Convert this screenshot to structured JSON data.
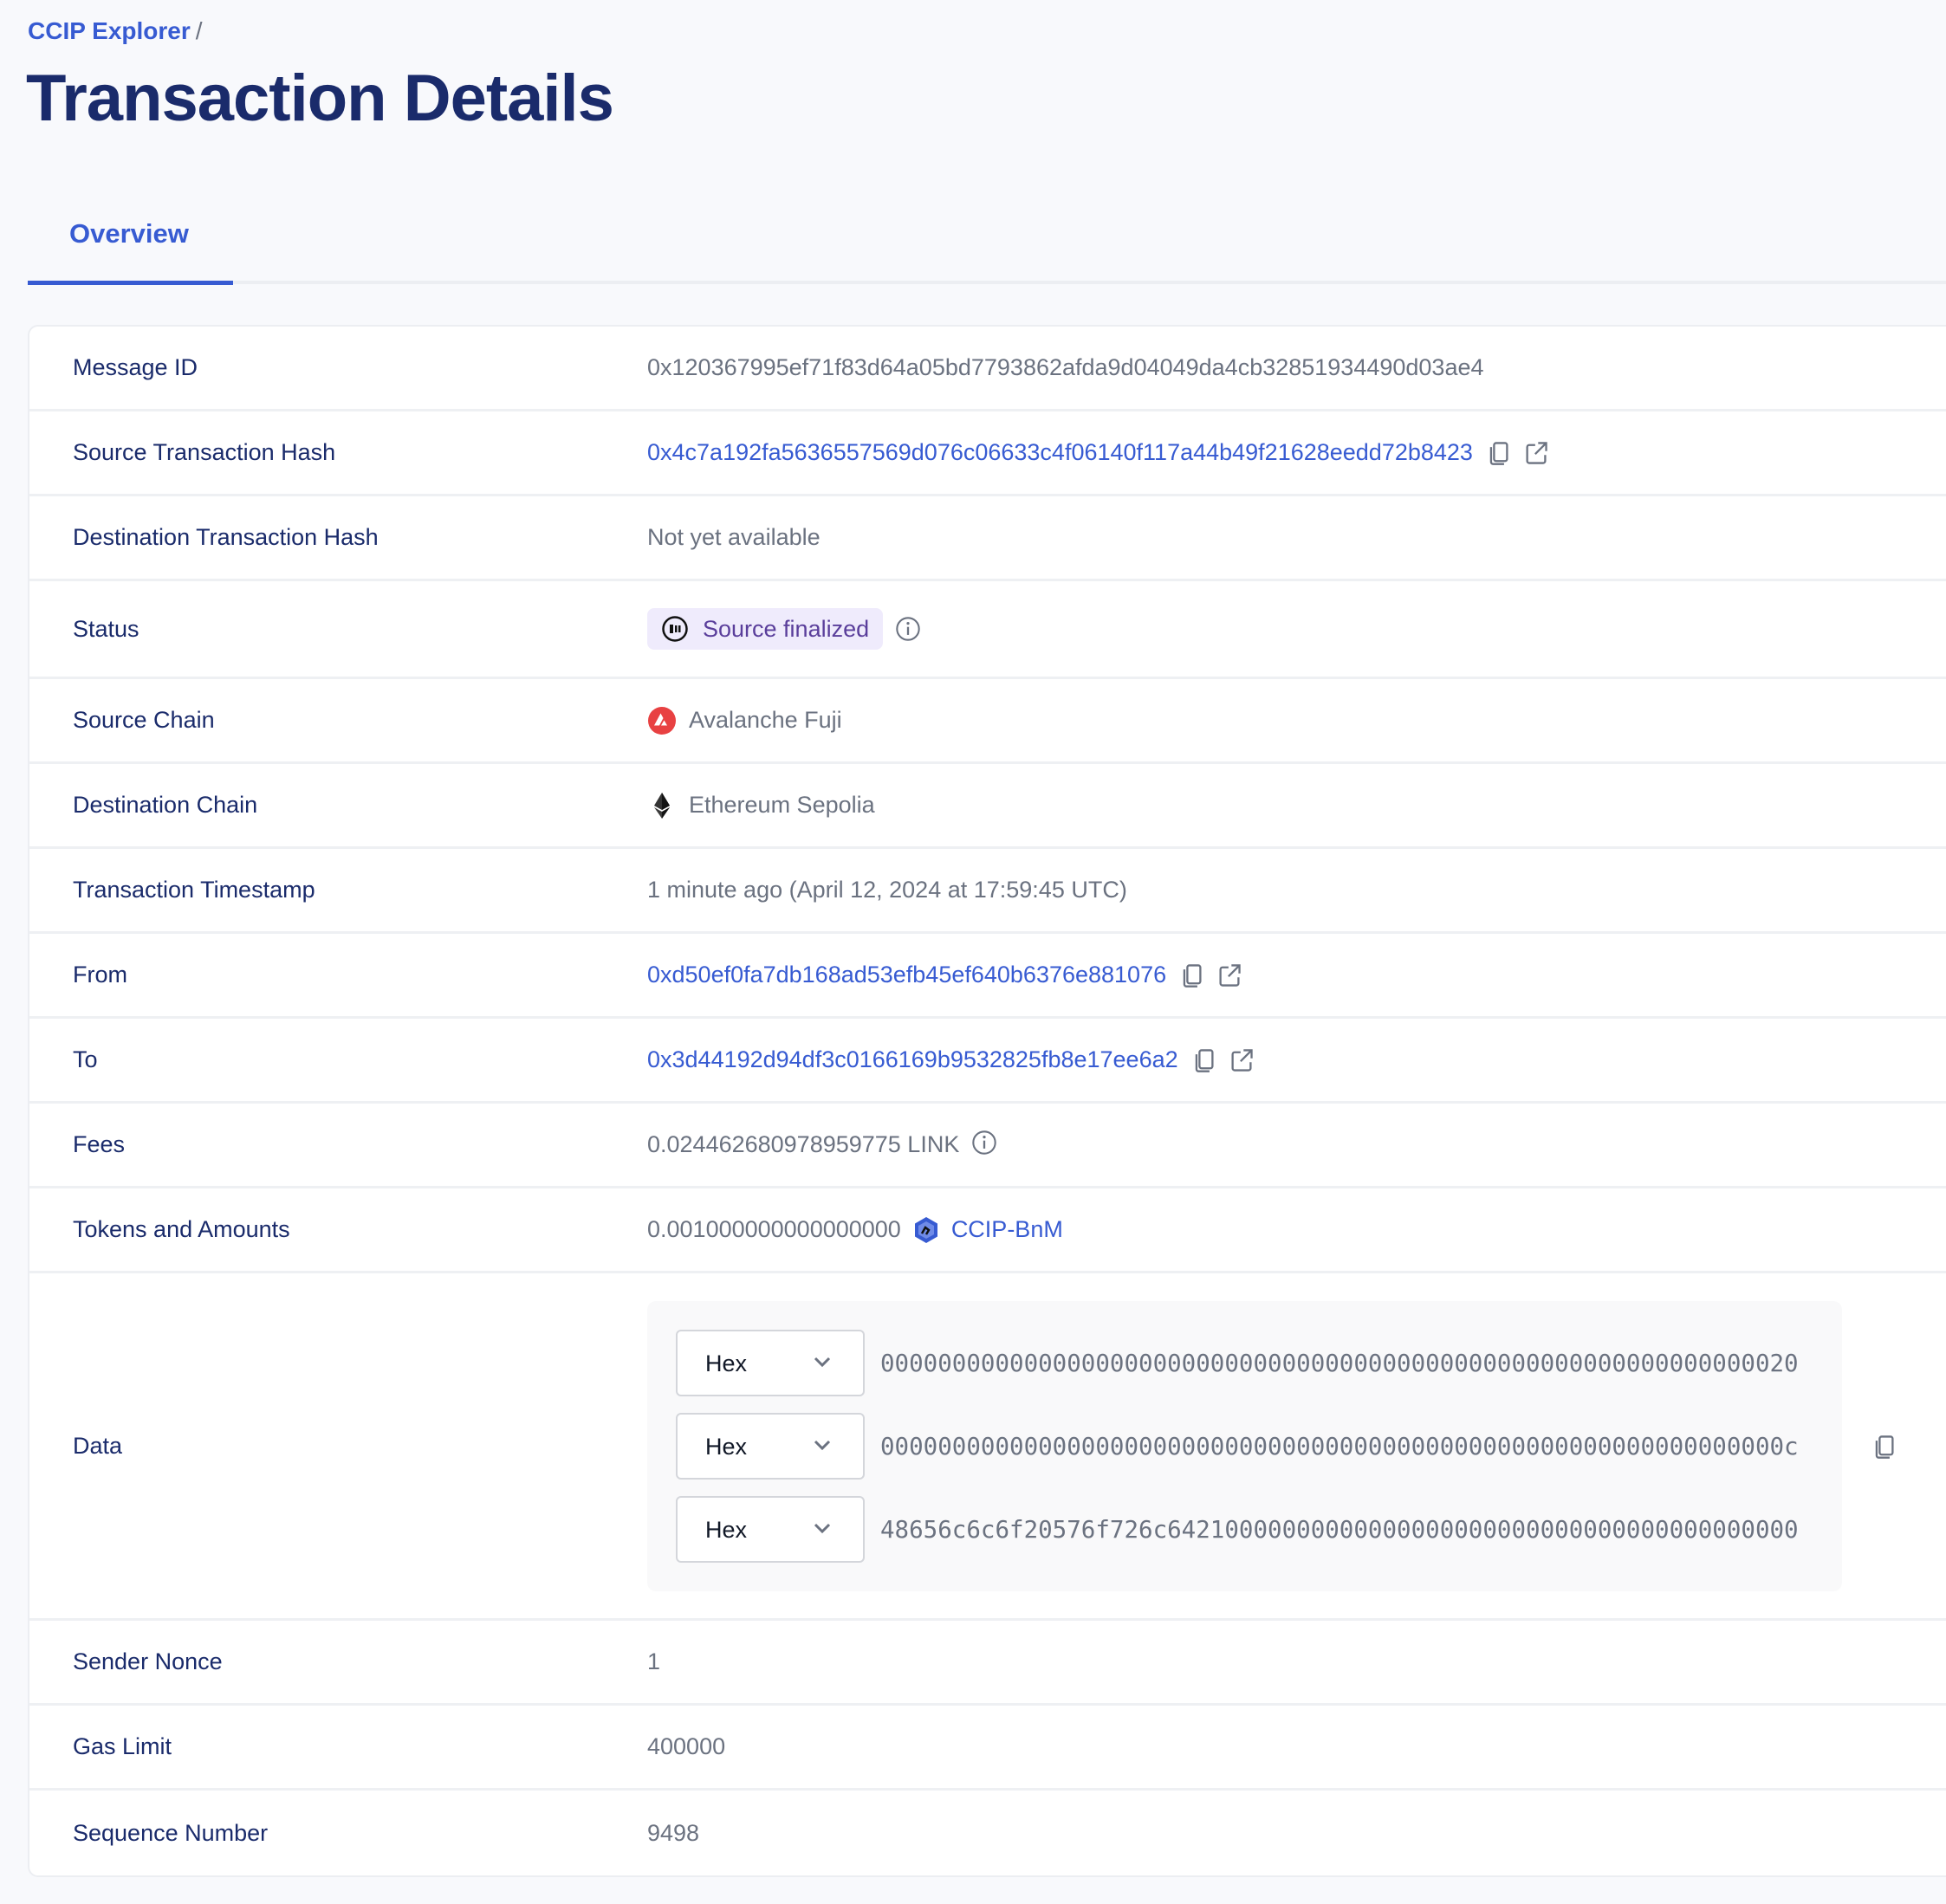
{
  "breadcrumb": {
    "root": "CCIP Explorer",
    "separator": "/"
  },
  "page_title": "Transaction Details",
  "tabs": [
    {
      "label": "Overview",
      "active": true
    }
  ],
  "colors": {
    "accent": "#375bd2",
    "heading": "#1a2b6b",
    "status_badge_bg": "#efebfc",
    "status_badge_text": "#5a3e9b",
    "avalanche": "#e84142"
  },
  "details": {
    "message_id": {
      "label": "Message ID",
      "value": "0x120367995ef71f83d64a05bd7793862afda9d04049da4cb32851934490d03ae4"
    },
    "source_tx": {
      "label": "Source Transaction Hash",
      "value": "0x4c7a192fa5636557569d076c06633c4f06140f117a44b49f21628eedd72b8423"
    },
    "dest_tx": {
      "label": "Destination Transaction Hash",
      "value": "Not yet available"
    },
    "status": {
      "label": "Status",
      "value": "Source finalized",
      "icon": "pause-circle-icon"
    },
    "source_chain": {
      "label": "Source Chain",
      "value": "Avalanche Fuji",
      "icon": "avalanche-icon"
    },
    "dest_chain": {
      "label": "Destination Chain",
      "value": "Ethereum Sepolia",
      "icon": "ethereum-icon"
    },
    "timestamp": {
      "label": "Transaction Timestamp",
      "value": "1 minute ago (April 12, 2024 at 17:59:45 UTC)"
    },
    "from": {
      "label": "From",
      "value": "0xd50ef0fa7db168ad53efb45ef640b6376e881076"
    },
    "to": {
      "label": "To",
      "value": "0x3d44192d94df3c0166169b9532825fb8e17ee6a2"
    },
    "fees": {
      "label": "Fees",
      "value": "0.024462680978959775 LINK"
    },
    "tokens": {
      "label": "Tokens and Amounts",
      "amount": "0.001000000000000000",
      "token": "CCIP-BnM"
    },
    "data": {
      "label": "Data",
      "rows": [
        {
          "format": "Hex",
          "value": "0000000000000000000000000000000000000000000000000000000000000020"
        },
        {
          "format": "Hex",
          "value": "000000000000000000000000000000000000000000000000000000000000000c"
        },
        {
          "format": "Hex",
          "value": "48656c6c6f20576f726c64210000000000000000000000000000000000000000"
        }
      ]
    },
    "sender_nonce": {
      "label": "Sender Nonce",
      "value": "1"
    },
    "gas_limit": {
      "label": "Gas Limit",
      "value": "400000"
    },
    "sequence_number": {
      "label": "Sequence Number",
      "value": "9498"
    }
  }
}
